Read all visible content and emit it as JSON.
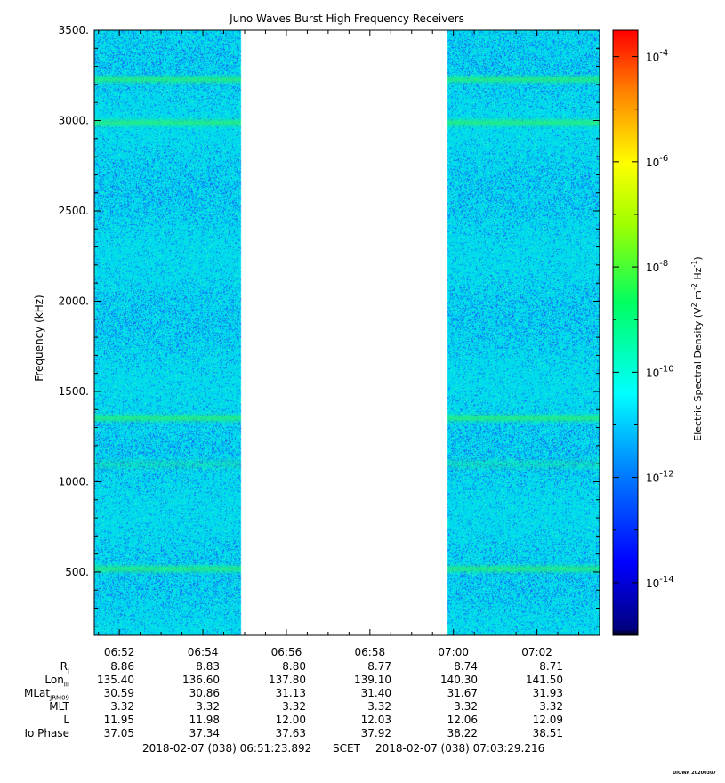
{
  "chart_data": {
    "type": "heatmap",
    "title": "Juno Waves Burst High Frequency Receivers",
    "ylabel": "Frequency (kHz)",
    "xlabel": "",
    "x_tick_labels": [
      "06:52",
      "06:54",
      "06:56",
      "06:58",
      "07:00",
      "07:02"
    ],
    "x_tick_minutes": [
      52,
      54,
      56,
      58,
      60,
      62
    ],
    "x_range_minutes": [
      51.4,
      63.5
    ],
    "gap_minutes": [
      54.9,
      59.85
    ],
    "ylim": [
      150,
      3500
    ],
    "y_ticks": [
      500,
      1000,
      1500,
      2000,
      2500,
      3000,
      3500
    ],
    "y_tick_labels": [
      "500.",
      "1000.",
      "1500.",
      "2000.",
      "2500.",
      "3000.",
      "3500."
    ],
    "bright_bands_khz": [
      520,
      1355,
      1100,
      2990,
      3230
    ],
    "colorbar": {
      "label": "Electric Spectral Density (V2 m-2 Hz-1)",
      "log_range": [
        -15,
        -3.5
      ],
      "ticks": [
        -14,
        -12,
        -10,
        -8,
        -6,
        -4
      ],
      "tick_labels": [
        "10-14",
        "10-12",
        "10-10",
        "10-8",
        "10-6",
        "10-4"
      ]
    }
  },
  "ephemeris": {
    "labels": [
      "RJ",
      "LonIII",
      "MLatJRM09",
      "MLT",
      "L",
      "Io Phase"
    ],
    "rows": [
      [
        "8.86",
        "8.83",
        "8.80",
        "8.77",
        "8.74",
        "8.71"
      ],
      [
        "135.40",
        "136.60",
        "137.80",
        "139.10",
        "140.30",
        "141.50"
      ],
      [
        "30.59",
        "30.86",
        "31.13",
        "31.40",
        "31.67",
        "31.93"
      ],
      [
        "3.32",
        "3.32",
        "3.32",
        "3.32",
        "3.32",
        "3.32"
      ],
      [
        "11.95",
        "11.98",
        "12.00",
        "12.03",
        "12.06",
        "12.09"
      ],
      [
        "37.05",
        "37.34",
        "37.63",
        "37.92",
        "38.22",
        "38.51"
      ]
    ]
  },
  "footer": {
    "start": "2018-02-07 (038) 06:51:23.892",
    "middle": "SCET",
    "end": "2018-02-07 (038) 07:03:29.216"
  },
  "stamp": "UIOWA 20200307"
}
